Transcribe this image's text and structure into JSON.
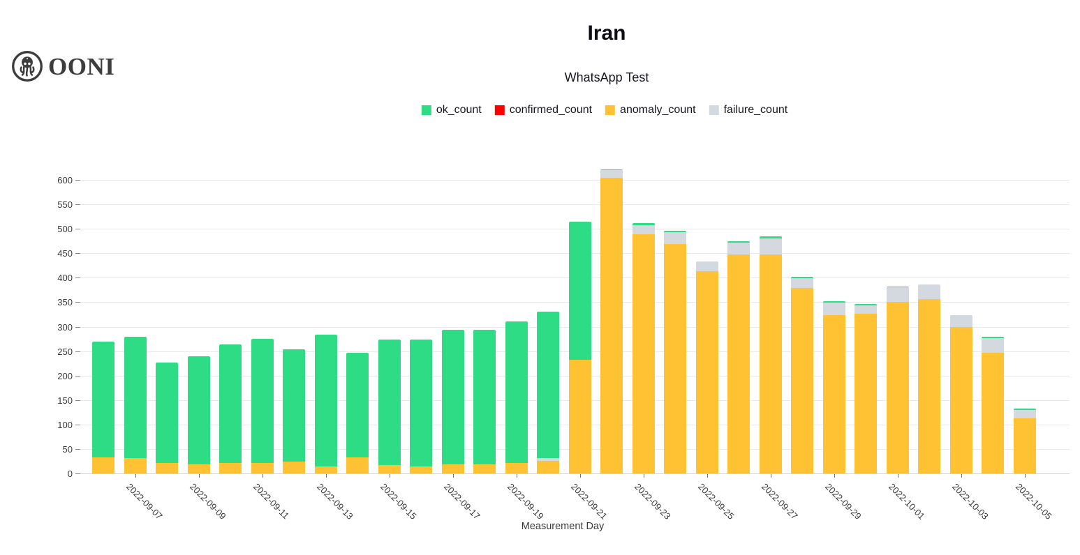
{
  "logo": {
    "brand": "OONI"
  },
  "header": {
    "title": "Iran",
    "subtitle": "WhatsApp Test"
  },
  "legend": [
    {
      "name": "ok_count",
      "label": "ok_count",
      "color": "#2edc85"
    },
    {
      "name": "confirmed_count",
      "label": "confirmed_count",
      "color": "#ff0000"
    },
    {
      "name": "anomaly_count",
      "label": "anomaly_count",
      "color": "#ffc233"
    },
    {
      "name": "failure_count",
      "label": "failure_count",
      "color": "#d4d9e0"
    }
  ],
  "chart_data": {
    "type": "bar",
    "stacked": true,
    "title": "Iran",
    "subtitle": "WhatsApp Test",
    "xlabel": "Measurement Day",
    "ylabel": "",
    "ylim": [
      0,
      600
    ],
    "grid": true,
    "legend_position": "top-center",
    "yticks": [
      0,
      50,
      100,
      150,
      200,
      250,
      300,
      350,
      400,
      450,
      500,
      550,
      600
    ],
    "xtick_every": 2,
    "xtick_labels": [
      "2022-09-07",
      "2022-09-09",
      "2022-09-11",
      "2022-09-13",
      "2022-09-15",
      "2022-09-17",
      "2022-09-19",
      "2022-09-21",
      "2022-09-23",
      "2022-09-25",
      "2022-09-27",
      "2022-09-29",
      "2022-10-01",
      "2022-10-03",
      "2022-10-05"
    ],
    "categories": [
      "2022-09-06",
      "2022-09-07",
      "2022-09-08",
      "2022-09-09",
      "2022-09-10",
      "2022-09-11",
      "2022-09-12",
      "2022-09-13",
      "2022-09-14",
      "2022-09-15",
      "2022-09-16",
      "2022-09-17",
      "2022-09-18",
      "2022-09-19",
      "2022-09-20",
      "2022-09-21",
      "2022-09-22",
      "2022-09-23",
      "2022-09-24",
      "2022-09-25",
      "2022-09-26",
      "2022-09-27",
      "2022-09-28",
      "2022-09-29",
      "2022-09-30",
      "2022-10-01",
      "2022-10-02",
      "2022-10-03",
      "2022-10-04",
      "2022-10-05"
    ],
    "stack_order_bottom_to_top": [
      "anomaly_count",
      "confirmed_count",
      "failure_count",
      "ok_count"
    ],
    "series": [
      {
        "name": "ok_count",
        "color": "#2edc85",
        "values": [
          236,
          249,
          206,
          220,
          243,
          254,
          229,
          270,
          213,
          256,
          259,
          274,
          276,
          289,
          299,
          282,
          2,
          3,
          3,
          0,
          3,
          3,
          3,
          3,
          2,
          2,
          0,
          0,
          3,
          2
        ]
      },
      {
        "name": "confirmed_count",
        "color": "#ff0000",
        "values": [
          0,
          0,
          0,
          0,
          0,
          0,
          0,
          0,
          0,
          0,
          0,
          0,
          0,
          0,
          0,
          0,
          0,
          0,
          0,
          0,
          0,
          0,
          0,
          0,
          0,
          0,
          0,
          0,
          0,
          0
        ]
      },
      {
        "name": "anomaly_count",
        "color": "#ffc233",
        "values": [
          33,
          31,
          21,
          19,
          21,
          21,
          24,
          14,
          33,
          17,
          14,
          19,
          18,
          21,
          26,
          233,
          604,
          489,
          469,
          414,
          448,
          448,
          379,
          323,
          326,
          350,
          356,
          299,
          246,
          113
        ]
      },
      {
        "name": "failure_count",
        "color": "#d4d9e0",
        "values": [
          0,
          0,
          0,
          0,
          0,
          0,
          0,
          0,
          0,
          0,
          0,
          0,
          0,
          0,
          5,
          0,
          16,
          19,
          24,
          19,
          24,
          33,
          20,
          26,
          18,
          30,
          30,
          25,
          30,
          17
        ]
      }
    ]
  }
}
